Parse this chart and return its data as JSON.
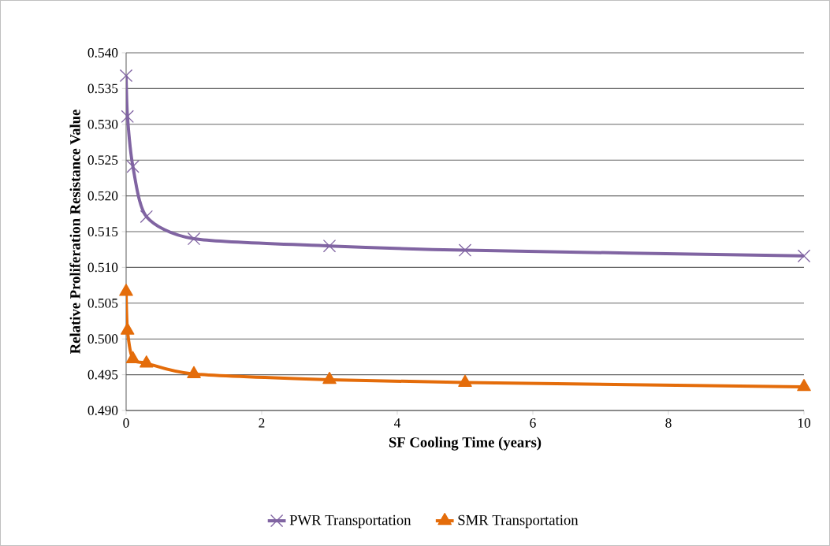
{
  "chart_data": {
    "type": "line",
    "xlabel": "SF Cooling Time (years)",
    "ylabel": "Relative Proliferation Resistance Value",
    "xlim": [
      0,
      10
    ],
    "xticks": [
      0,
      2,
      4,
      6,
      8,
      10
    ],
    "ylim": [
      0.49,
      0.54
    ],
    "yticks": [
      {
        "value": 0.49,
        "label": "0.490"
      },
      {
        "value": 0.495,
        "label": "0.495"
      },
      {
        "value": 0.5,
        "label": "0.500"
      },
      {
        "value": 0.505,
        "label": "0.505"
      },
      {
        "value": 0.51,
        "label": "0.510"
      },
      {
        "value": 0.515,
        "label": "0.515"
      },
      {
        "value": 0.52,
        "label": "0.520"
      },
      {
        "value": 0.525,
        "label": "0.525"
      },
      {
        "value": 0.53,
        "label": "0.530"
      },
      {
        "value": 0.535,
        "label": "0.535"
      },
      {
        "value": 0.54,
        "label": "0.540"
      }
    ],
    "grid": "y",
    "legend": "bottom",
    "line_style": "solid",
    "x": [
      0,
      0.02,
      0.1,
      0.3,
      1,
      3,
      5,
      10
    ],
    "series": [
      {
        "name": "PWR Transportation",
        "color": "#8064a2",
        "marker": "cross",
        "values": [
          0.5368,
          0.5311,
          0.5241,
          0.5171,
          0.514,
          0.513,
          0.5124,
          0.5116
        ]
      },
      {
        "name": "SMR Transportation",
        "color": "#e46c0a",
        "marker": "triangle",
        "values": [
          0.5066,
          0.5012,
          0.4972,
          0.4966,
          0.4951,
          0.4943,
          0.4939,
          0.4933
        ]
      }
    ]
  }
}
